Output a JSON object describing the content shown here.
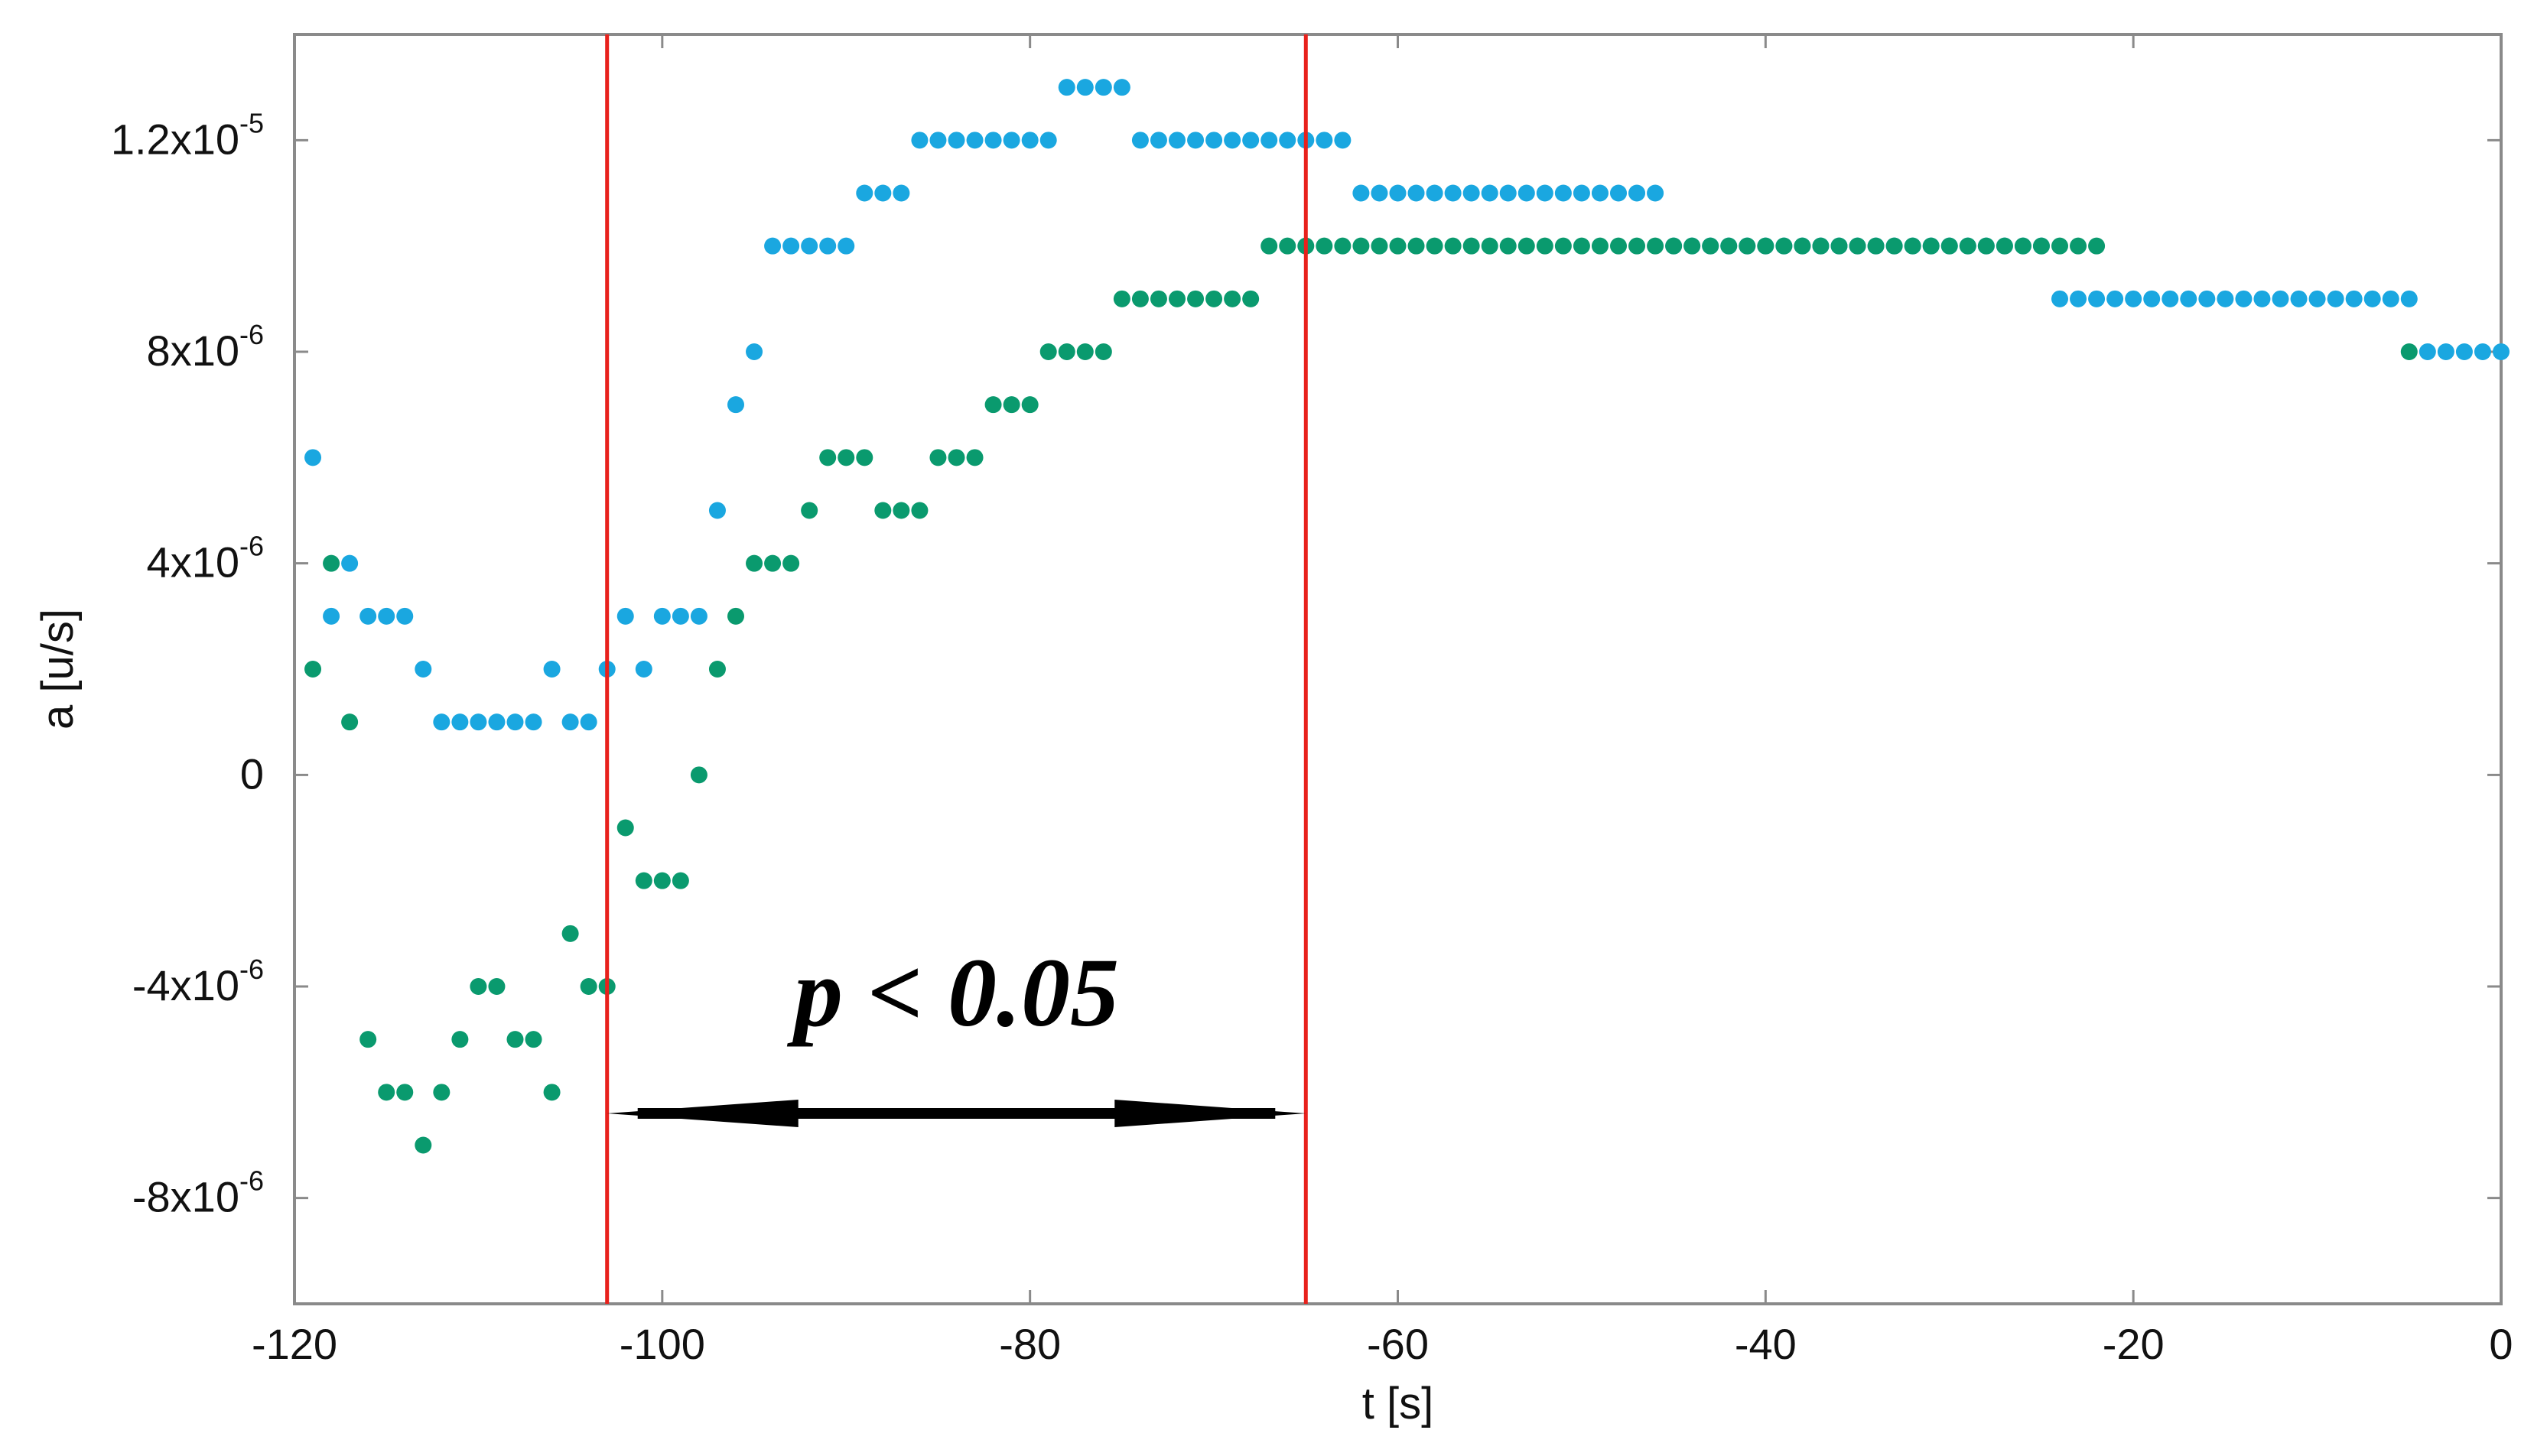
{
  "chart_data": {
    "type": "scatter",
    "xlabel": "t [s]",
    "ylabel": "a [u/s]",
    "xlim": [
      -120,
      0
    ],
    "ylim": [
      -1e-05,
      1.4e-05
    ],
    "grid": false,
    "x_ticks": [
      {
        "value": -120,
        "label": "-120"
      },
      {
        "value": -100,
        "label": "-100"
      },
      {
        "value": -80,
        "label": "-80"
      },
      {
        "value": -60,
        "label": "-60"
      },
      {
        "value": -40,
        "label": "-40"
      },
      {
        "value": -20,
        "label": "-20"
      },
      {
        "value": 0,
        "label": "0"
      }
    ],
    "y_ticks": [
      {
        "value": -8e-06,
        "mantissa": "-8x10",
        "exponent": "-6"
      },
      {
        "value": -4e-06,
        "mantissa": "-4x10",
        "exponent": "-6"
      },
      {
        "value": 0,
        "mantissa": "0",
        "exponent": ""
      },
      {
        "value": 4e-06,
        "mantissa": "4x10",
        "exponent": "-6"
      },
      {
        "value": 8e-06,
        "mantissa": "8x10",
        "exponent": "-6"
      },
      {
        "value": 1.2e-05,
        "mantissa": "1.2x10",
        "exponent": "-5"
      }
    ],
    "colors": {
      "blue": "#1aa7e0",
      "green": "#0a9a6e",
      "vlines": "#e8211c",
      "arrow": "#000000"
    },
    "series": [
      {
        "color": "blue",
        "x": [
          -119,
          -118,
          -117,
          -116,
          -115,
          -114,
          -113,
          -112,
          -111,
          -110,
          -109,
          -108,
          -107,
          -106,
          -105,
          -104,
          -103,
          -102,
          -101,
          -100,
          -99,
          -98,
          -97,
          -96,
          -95,
          -94,
          -93,
          -92,
          -91,
          -90,
          -89,
          -88,
          -87,
          -86,
          -85,
          -84,
          -83,
          -82,
          -81,
          -80,
          -79,
          -78,
          -77,
          -76,
          -75,
          -74,
          -73,
          -72,
          -71,
          -70,
          -69,
          -68,
          -67,
          -66,
          -65,
          -64,
          -63,
          -62,
          -61,
          -60,
          -59,
          -58,
          -57,
          -56,
          -55,
          -54,
          -53,
          -52,
          -51,
          -50,
          -49,
          -48,
          -47,
          -46,
          -45,
          -44,
          -43,
          -42,
          -41,
          -40,
          -39,
          -38,
          -37,
          -36,
          -35,
          -34,
          -33,
          -32,
          -31,
          -30,
          -29,
          -28,
          -27,
          -26,
          -25,
          -24,
          -23,
          -22,
          -21,
          -20,
          -19,
          -18,
          -17,
          -16,
          -15,
          -14,
          -13,
          -12,
          -11,
          -10,
          -9,
          -8,
          -7,
          -6,
          -5,
          -4,
          -3,
          -2,
          -1,
          0
        ],
        "y": [
          6e-06,
          3e-06,
          4e-06,
          3e-06,
          3e-06,
          3e-06,
          2e-06,
          1e-06,
          1e-06,
          1e-06,
          1e-06,
          1e-06,
          1e-06,
          2e-06,
          1e-06,
          1e-06,
          2e-06,
          3e-06,
          2e-06,
          3e-06,
          3e-06,
          3e-06,
          5e-06,
          7e-06,
          8e-06,
          1e-05,
          1e-05,
          1e-05,
          1e-05,
          1e-05,
          1.1e-05,
          1.1e-05,
          1.1e-05,
          1.2e-05,
          1.2e-05,
          1.2e-05,
          1.2e-05,
          1.2e-05,
          1.2e-05,
          1.2e-05,
          1.2e-05,
          1.3e-05,
          1.3e-05,
          1.3e-05,
          1.3e-05,
          1.2e-05,
          1.2e-05,
          1.2e-05,
          1.2e-05,
          1.2e-05,
          1.2e-05,
          1.2e-05,
          1.2e-05,
          1.2e-05,
          1.2e-05,
          1.2e-05,
          1.2e-05,
          1.1e-05,
          1.1e-05,
          1.1e-05,
          1.1e-05,
          1.1e-05,
          1.1e-05,
          1.1e-05,
          1.1e-05,
          1.1e-05,
          1.1e-05,
          1.1e-05,
          1.1e-05,
          1.1e-05,
          1.1e-05,
          1.1e-05,
          1.1e-05,
          1.1e-05,
          1e-05,
          1e-05,
          1e-05,
          1e-05,
          1e-05,
          1e-05,
          1e-05,
          1e-05,
          1e-05,
          1e-05,
          1e-05,
          1e-05,
          1e-05,
          1e-05,
          1e-05,
          1e-05,
          1e-05,
          1e-05,
          1e-05,
          1e-05,
          1e-05,
          9e-06,
          9e-06,
          9e-06,
          9e-06,
          9e-06,
          9e-06,
          9e-06,
          9e-06,
          9e-06,
          9e-06,
          9e-06,
          9e-06,
          9e-06,
          9e-06,
          9e-06,
          9e-06,
          9e-06,
          9e-06,
          9e-06,
          9e-06,
          8e-06,
          8e-06,
          8e-06,
          8e-06,
          8e-06
        ]
      },
      {
        "color": "green",
        "x": [
          -119,
          -118,
          -117,
          -116,
          -115,
          -114,
          -113,
          -112,
          -111,
          -110,
          -109,
          -108,
          -107,
          -106,
          -105,
          -104,
          -103,
          -102,
          -101,
          -100,
          -99,
          -98,
          -97,
          -96,
          -95,
          -94,
          -93,
          -92,
          -91,
          -90,
          -89,
          -88,
          -87,
          -86,
          -85,
          -84,
          -83,
          -82,
          -81,
          -80,
          -79,
          -78,
          -77,
          -76,
          -75,
          -74,
          -73,
          -72,
          -71,
          -70,
          -69,
          -68,
          -67,
          -66,
          -65,
          -64,
          -63,
          -62,
          -61,
          -60,
          -59,
          -58,
          -57,
          -56,
          -55,
          -54,
          -53,
          -52,
          -51,
          -50,
          -49,
          -48,
          -47,
          -46,
          -45,
          -44,
          -43,
          -42,
          -41,
          -40,
          -39,
          -38,
          -37,
          -36,
          -35,
          -34,
          -33,
          -32,
          -31,
          -30,
          -29,
          -28,
          -27,
          -26,
          -25,
          -24,
          -23,
          -22,
          -5
        ],
        "y": [
          2e-06,
          4e-06,
          1e-06,
          -5e-06,
          -6e-06,
          -6e-06,
          -7e-06,
          -6e-06,
          -5e-06,
          -4e-06,
          -4e-06,
          -5e-06,
          -5e-06,
          -6e-06,
          -3e-06,
          -4e-06,
          -4e-06,
          -1e-06,
          -2e-06,
          -2e-06,
          -2e-06,
          0,
          2e-06,
          3e-06,
          4e-06,
          4e-06,
          4e-06,
          5e-06,
          6e-06,
          6e-06,
          6e-06,
          5e-06,
          5e-06,
          5e-06,
          6e-06,
          6e-06,
          6e-06,
          7e-06,
          7e-06,
          7e-06,
          8e-06,
          8e-06,
          8e-06,
          8e-06,
          9e-06,
          9e-06,
          9e-06,
          9e-06,
          9e-06,
          9e-06,
          9e-06,
          9e-06,
          1e-05,
          1e-05,
          1e-05,
          1e-05,
          1e-05,
          1e-05,
          1e-05,
          1e-05,
          1e-05,
          1e-05,
          1e-05,
          1e-05,
          1e-05,
          1e-05,
          1e-05,
          1e-05,
          1e-05,
          1e-05,
          1e-05,
          1e-05,
          1e-05,
          1e-05,
          1e-05,
          1e-05,
          1e-05,
          1e-05,
          1e-05,
          1e-05,
          1e-05,
          1e-05,
          1e-05,
          1e-05,
          1e-05,
          1e-05,
          1e-05,
          1e-05,
          1e-05,
          1e-05,
          1e-05,
          1e-05,
          1e-05,
          1e-05,
          1e-05,
          1e-05,
          1e-05,
          1e-05,
          8e-06
        ]
      }
    ],
    "vertical_lines": [
      -103,
      -65
    ],
    "annotation": {
      "text": "p < 0.05",
      "x_start": -103,
      "x_end": -65,
      "y": -6.4e-06
    }
  }
}
